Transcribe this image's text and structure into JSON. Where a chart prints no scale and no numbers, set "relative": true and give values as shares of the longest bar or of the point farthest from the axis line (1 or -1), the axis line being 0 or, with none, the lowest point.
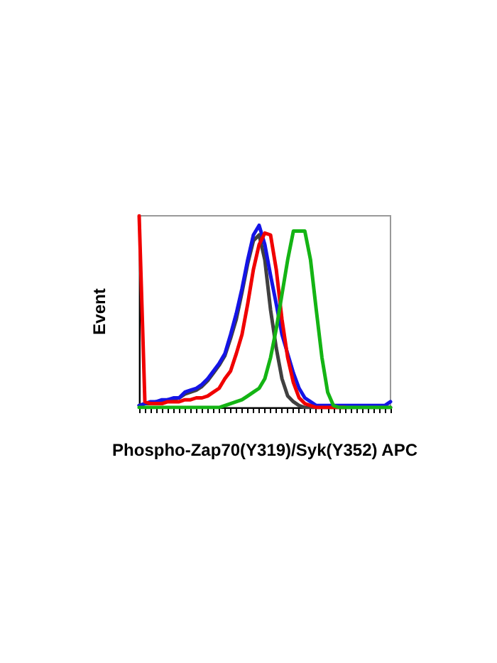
{
  "chart_data": {
    "type": "line",
    "relative": true,
    "xlabel": "Phospho-Zap70(Y319)/Syk(Y352) APC",
    "ylabel": "Event",
    "marker": "none",
    "grid": false,
    "categories": [
      null,
      null,
      null,
      null,
      null,
      null,
      null,
      null,
      null,
      null,
      null,
      null,
      null,
      null,
      null,
      null,
      null,
      null,
      null,
      null,
      null,
      null,
      null,
      null,
      null,
      null,
      null,
      null,
      null,
      null,
      null,
      null,
      null,
      null,
      null,
      null,
      null,
      null,
      null,
      null,
      null,
      null,
      null,
      null,
      null
    ],
    "series": [
      {
        "color": "#404040",
        "values": [
          0.01,
          0.02,
          0.02,
          0.03,
          0.03,
          0.04,
          0.04,
          0.05,
          0.07,
          0.08,
          0.09,
          0.11,
          0.14,
          0.18,
          0.22,
          0.27,
          0.36,
          0.46,
          0.6,
          0.75,
          0.87,
          0.9,
          0.77,
          0.51,
          0.31,
          0.15,
          0.06,
          0.03,
          0.01,
          0,
          0,
          0,
          0,
          0,
          0,
          0,
          0,
          0,
          0,
          0,
          0,
          0,
          0,
          0,
          0
        ]
      },
      {
        "color": "#1414e6",
        "values": [
          0.01,
          0.02,
          0.03,
          0.03,
          0.04,
          0.04,
          0.05,
          0.05,
          0.08,
          0.09,
          0.1,
          0.12,
          0.15,
          0.19,
          0.23,
          0.28,
          0.38,
          0.49,
          0.62,
          0.77,
          0.9,
          0.95,
          0.85,
          0.69,
          0.54,
          0.38,
          0.28,
          0.18,
          0.1,
          0.05,
          0.03,
          0.01,
          0.01,
          0.01,
          0.01,
          0.01,
          0.01,
          0.01,
          0.01,
          0.01,
          0.01,
          0.01,
          0.01,
          0.01,
          0.03
        ]
      },
      {
        "color": "#f00000",
        "values": [
          1,
          0.03,
          0.02,
          0.02,
          0.02,
          0.03,
          0.03,
          0.03,
          0.04,
          0.04,
          0.05,
          0.05,
          0.06,
          0.08,
          0.1,
          0.15,
          0.19,
          0.28,
          0.38,
          0.54,
          0.72,
          0.85,
          0.91,
          0.9,
          0.72,
          0.46,
          0.26,
          0.13,
          0.05,
          0.02,
          0.01,
          0,
          0,
          0,
          0,
          0,
          0,
          null,
          null,
          null,
          null,
          null,
          null,
          null,
          null
        ]
      },
      {
        "color": "#14b414",
        "values": [
          0,
          0,
          0,
          0,
          0,
          0,
          0,
          0,
          0,
          0,
          0,
          0,
          0,
          0,
          0,
          0.01,
          0.02,
          0.03,
          0.04,
          0.06,
          0.08,
          0.1,
          0.15,
          0.26,
          0.41,
          0.59,
          0.77,
          0.92,
          0.92,
          0.92,
          0.77,
          0.51,
          0.26,
          0.08,
          0.01,
          0,
          0,
          0,
          0,
          0,
          0,
          0,
          0,
          0,
          0
        ]
      }
    ]
  }
}
